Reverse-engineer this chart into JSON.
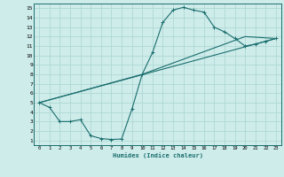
{
  "xlabel": "Humidex (Indice chaleur)",
  "bg_color": "#ceecea",
  "grid_color": "#aed8d4",
  "line_color": "#1a6e6e",
  "xlim": [
    -0.5,
    23.5
  ],
  "ylim": [
    0.5,
    15.5
  ],
  "xticks": [
    0,
    1,
    2,
    3,
    4,
    5,
    6,
    7,
    8,
    9,
    10,
    11,
    12,
    13,
    14,
    15,
    16,
    17,
    18,
    19,
    20,
    21,
    22,
    23
  ],
  "yticks": [
    1,
    2,
    3,
    4,
    5,
    6,
    7,
    8,
    9,
    10,
    11,
    12,
    13,
    14,
    15
  ],
  "curve1_x": [
    0,
    1,
    2,
    3,
    4,
    5,
    6,
    7,
    8,
    9,
    10,
    11,
    12,
    13,
    14,
    15,
    16,
    17,
    18,
    19,
    20,
    21,
    22,
    23
  ],
  "curve1_y": [
    5.0,
    4.5,
    3.0,
    3.0,
    3.2,
    1.5,
    1.2,
    1.1,
    1.15,
    4.3,
    8.0,
    10.3,
    13.5,
    14.8,
    15.1,
    14.8,
    14.6,
    13.0,
    12.5,
    11.8,
    11.0,
    11.2,
    11.5,
    11.8
  ],
  "curve2_x": [
    0,
    23
  ],
  "curve2_y": [
    5.0,
    11.8
  ],
  "curve3_x": [
    0,
    10,
    20,
    23
  ],
  "curve3_y": [
    5.0,
    8.0,
    12.0,
    11.8
  ]
}
